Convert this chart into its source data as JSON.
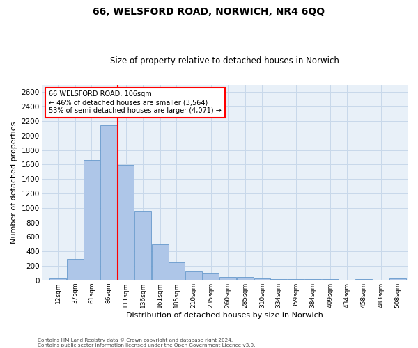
{
  "title1": "66, WELSFORD ROAD, NORWICH, NR4 6QQ",
  "title2": "Size of property relative to detached houses in Norwich",
  "xlabel": "Distribution of detached houses by size in Norwich",
  "ylabel": "Number of detached properties",
  "footnote1": "Contains HM Land Registry data © Crown copyright and database right 2024.",
  "footnote2": "Contains public sector information licensed under the Open Government Licence v3.0.",
  "annotation_title": "66 WELSFORD ROAD: 106sqm",
  "annotation_line1": "← 46% of detached houses are smaller (3,564)",
  "annotation_line2": "53% of semi-detached houses are larger (4,071) →",
  "categories": [
    "12sqm",
    "37sqm",
    "61sqm",
    "86sqm",
    "111sqm",
    "136sqm",
    "161sqm",
    "185sqm",
    "210sqm",
    "235sqm",
    "260sqm",
    "285sqm",
    "310sqm",
    "334sqm",
    "359sqm",
    "384sqm",
    "409sqm",
    "434sqm",
    "458sqm",
    "483sqm",
    "508sqm"
  ],
  "bin_starts": [
    12,
    37,
    61,
    86,
    111,
    136,
    161,
    185,
    210,
    235,
    260,
    285,
    310,
    334,
    359,
    384,
    409,
    434,
    458,
    483,
    508
  ],
  "values": [
    30,
    300,
    1660,
    2140,
    1590,
    960,
    500,
    250,
    120,
    100,
    50,
    50,
    30,
    20,
    20,
    20,
    20,
    5,
    20,
    5,
    25
  ],
  "bar_color": "#aec6e8",
  "bar_edge_color": "#6699cc",
  "grid_color": "#c8d8ea",
  "background_color": "#e8f0f8",
  "vline_color": "red",
  "annotation_box_color": "white",
  "annotation_box_edge": "red",
  "ylim": [
    0,
    2700
  ],
  "yticks": [
    0,
    200,
    400,
    600,
    800,
    1000,
    1200,
    1400,
    1600,
    1800,
    2000,
    2200,
    2400,
    2600
  ]
}
